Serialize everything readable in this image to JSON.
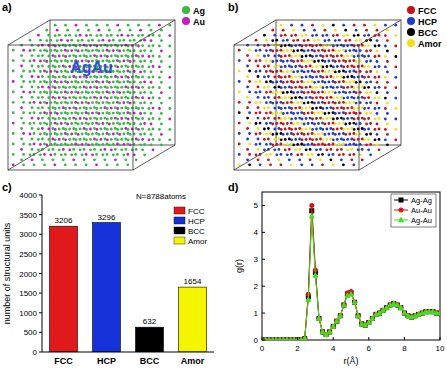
{
  "chart_data": [
    {
      "type": "atom_cube",
      "title": "AgAu",
      "annotations": [
        "a)"
      ],
      "series": [
        {
          "name": "Ag",
          "color": "#3db54a"
        },
        {
          "name": "Au",
          "color": "#c020c0"
        }
      ],
      "legend": "upper right"
    },
    {
      "type": "atom_cube",
      "annotations": [
        "b)"
      ],
      "series": [
        {
          "name": "FCC",
          "color": "#c0141c"
        },
        {
          "name": "HCP",
          "color": "#1e3cc8"
        },
        {
          "name": "BCC",
          "color": "#000000"
        },
        {
          "name": "Amor",
          "color": "#f0e020"
        }
      ],
      "legend": "upper right"
    },
    {
      "type": "bar",
      "annotations": [
        "c)",
        "N=8788atoms"
      ],
      "y_label": "number of structural units",
      "categories": [
        "FCC",
        "HCP",
        "BCC",
        "Amor"
      ],
      "values": [
        3206,
        3296,
        632,
        1654
      ],
      "colors": [
        "#e0191b",
        "#1432d8",
        "#000000",
        "#f5f500"
      ],
      "ylim": [
        0,
        4000
      ],
      "yticks": [
        0,
        500,
        1000,
        1500,
        2000,
        2500,
        3000,
        3500,
        4000
      ],
      "data_labels": true,
      "legend": "upper right"
    },
    {
      "type": "line",
      "annotations": [
        "d)"
      ],
      "x_label": "r(Å)",
      "y_label": "g(r)",
      "x": [
        0,
        0.2,
        0.4,
        0.6,
        0.8,
        1.0,
        1.2,
        1.4,
        1.6,
        1.8,
        2.0,
        2.2,
        2.4,
        2.6,
        2.8,
        3.0,
        3.2,
        3.4,
        3.6,
        3.8,
        4.0,
        4.2,
        4.4,
        4.6,
        4.8,
        5.0,
        5.2,
        5.4,
        5.6,
        5.8,
        6.0,
        6.2,
        6.4,
        6.6,
        6.8,
        7.0,
        7.2,
        7.4,
        7.6,
        7.8,
        8.0,
        8.2,
        8.4,
        8.6,
        8.8,
        9.0,
        9.2,
        9.4,
        9.6,
        9.8,
        10.0
      ],
      "series": [
        {
          "name": "Ag-Ag",
          "color": "#000000",
          "marker": "square",
          "values": [
            0,
            0,
            0,
            0,
            0,
            0,
            0,
            0,
            0,
            0,
            0,
            0,
            0.05,
            1.6,
            4.8,
            2.5,
            0.8,
            0.3,
            0.2,
            0.3,
            0.5,
            0.7,
            0.9,
            1.3,
            1.7,
            1.75,
            1.4,
            0.9,
            0.6,
            0.55,
            0.65,
            0.8,
            0.95,
            1.0,
            1.1,
            1.2,
            1.3,
            1.35,
            1.3,
            1.2,
            1.0,
            0.9,
            0.85,
            0.9,
            0.95,
            1.0,
            1.05,
            1.05,
            1.05,
            1.0,
            1.0
          ]
        },
        {
          "name": "Au-Au",
          "color": "#e01010",
          "marker": "circle",
          "values": [
            0,
            0,
            0,
            0,
            0,
            0,
            0,
            0,
            0,
            0,
            0,
            0,
            0.05,
            1.7,
            5.0,
            2.6,
            0.8,
            0.3,
            0.2,
            0.3,
            0.5,
            0.7,
            0.9,
            1.3,
            1.75,
            1.8,
            1.4,
            0.9,
            0.6,
            0.55,
            0.65,
            0.8,
            0.95,
            1.0,
            1.1,
            1.2,
            1.3,
            1.35,
            1.3,
            1.2,
            1.0,
            0.9,
            0.85,
            0.9,
            0.95,
            1.0,
            1.05,
            1.05,
            1.05,
            1.0,
            1.0
          ]
        },
        {
          "name": "Ag-Au",
          "color": "#40e020",
          "marker": "triangle",
          "values": [
            0,
            0,
            0,
            0,
            0,
            0,
            0,
            0,
            0,
            0,
            0,
            0,
            0.05,
            1.5,
            4.6,
            2.4,
            0.8,
            0.3,
            0.2,
            0.3,
            0.5,
            0.7,
            0.9,
            1.3,
            1.65,
            1.7,
            1.4,
            0.9,
            0.6,
            0.55,
            0.65,
            0.8,
            0.95,
            1.0,
            1.1,
            1.2,
            1.3,
            1.35,
            1.3,
            1.2,
            1.0,
            0.9,
            0.85,
            0.9,
            0.95,
            1.0,
            1.05,
            1.05,
            1.05,
            1.0,
            1.0
          ]
        }
      ],
      "xlim": [
        0,
        10
      ],
      "xticks": [
        0,
        2,
        4,
        6,
        8,
        10
      ],
      "ylim": [
        0,
        5.5
      ],
      "yticks": [
        0,
        1,
        2,
        3,
        4,
        5
      ],
      "legend": "upper right"
    }
  ]
}
